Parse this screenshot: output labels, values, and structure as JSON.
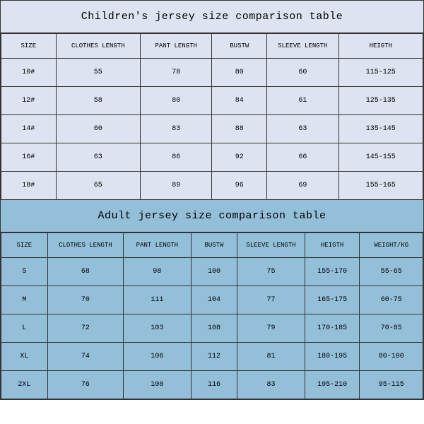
{
  "children": {
    "title": "Children's jersey size comparison table",
    "title_bg": "#dde3f0",
    "row_bg": "#dde3f0",
    "columns": [
      "SIZE",
      "CLOTHES LENGTH",
      "PANT LENGTH",
      "BUSTW",
      "SLEEVE LENGTH",
      "HEIGTH"
    ],
    "col_widths": [
      "13%",
      "20%",
      "17%",
      "13%",
      "17%",
      "20%"
    ],
    "rows": [
      [
        "10#",
        "55",
        "78",
        "80",
        "60",
        "115-125"
      ],
      [
        "12#",
        "58",
        "80",
        "84",
        "61",
        "125-135"
      ],
      [
        "14#",
        "60",
        "83",
        "88",
        "63",
        "135-145"
      ],
      [
        "16#",
        "63",
        "86",
        "92",
        "66",
        "145-155"
      ],
      [
        "18#",
        "65",
        "89",
        "96",
        "69",
        "155-165"
      ]
    ]
  },
  "adult": {
    "title": "Adult jersey size comparison table",
    "title_bg": "#94bfd9",
    "row_bg": "#94bfd9",
    "columns": [
      "SIZE",
      "CLOTHES LENGTH",
      "PANT LENGTH",
      "BUSTW",
      "SLEEVE LENGTH",
      "HEIGTH",
      "WEIGHT/KG"
    ],
    "col_widths": [
      "11%",
      "18%",
      "16%",
      "11%",
      "16%",
      "13%",
      "15%"
    ],
    "rows": [
      [
        "S",
        "68",
        "98",
        "100",
        "75",
        "155-170",
        "55-65"
      ],
      [
        "M",
        "70",
        "111",
        "104",
        "77",
        "165-175",
        "60-75"
      ],
      [
        "L",
        "72",
        "103",
        "108",
        "79",
        "170-185",
        "70-85"
      ],
      [
        "XL",
        "74",
        "106",
        "112",
        "81",
        "180-195",
        "80-100"
      ],
      [
        "2XL",
        "76",
        "108",
        "116",
        "83",
        "195-210",
        "95-115"
      ]
    ]
  }
}
